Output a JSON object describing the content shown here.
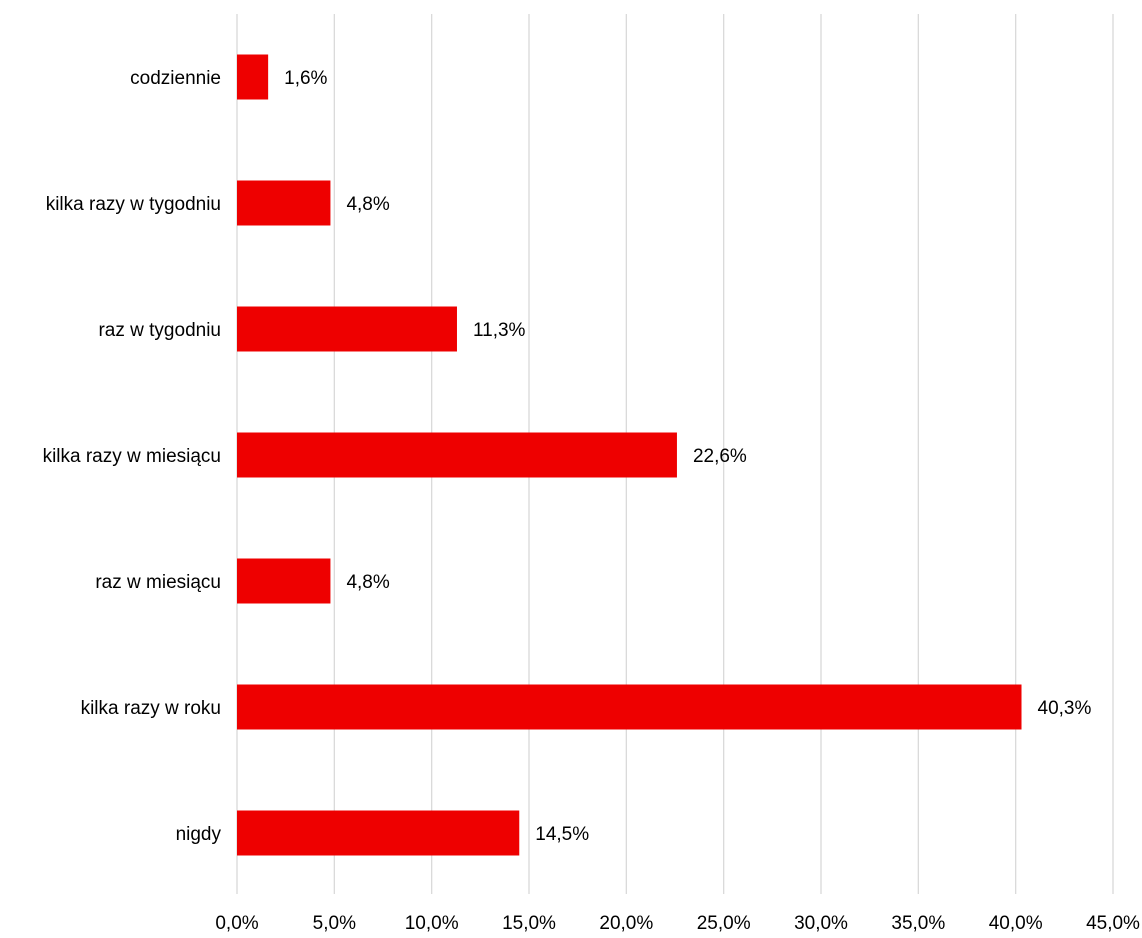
{
  "chart_data": {
    "type": "bar",
    "orientation": "horizontal",
    "title": "",
    "xlabel": "",
    "ylabel": "",
    "categories": [
      "codziennie",
      "kilka razy w tygodniu",
      "raz w tygodniu",
      "kilka razy w miesiącu",
      "raz w miesiącu",
      "kilka razy w roku",
      "nigdy"
    ],
    "values": [
      1.6,
      4.8,
      11.3,
      22.6,
      4.8,
      40.3,
      14.5
    ],
    "value_labels": [
      "1,6%",
      "4,8%",
      "11,3%",
      "22,6%",
      "4,8%",
      "40,3%",
      "14,5%"
    ],
    "xlim": [
      0,
      45
    ],
    "x_ticks": [
      0,
      5,
      10,
      15,
      20,
      25,
      30,
      35,
      40,
      45
    ],
    "x_tick_labels": [
      "0,0%",
      "5,0%",
      "10,0%",
      "15,0%",
      "20,0%",
      "25,0%",
      "30,0%",
      "35,0%",
      "40,0%",
      "45,0%"
    ],
    "grid": "vertical",
    "legend": "none",
    "bar_color": "#ee0000",
    "grid_color": "#d9d9d9"
  }
}
